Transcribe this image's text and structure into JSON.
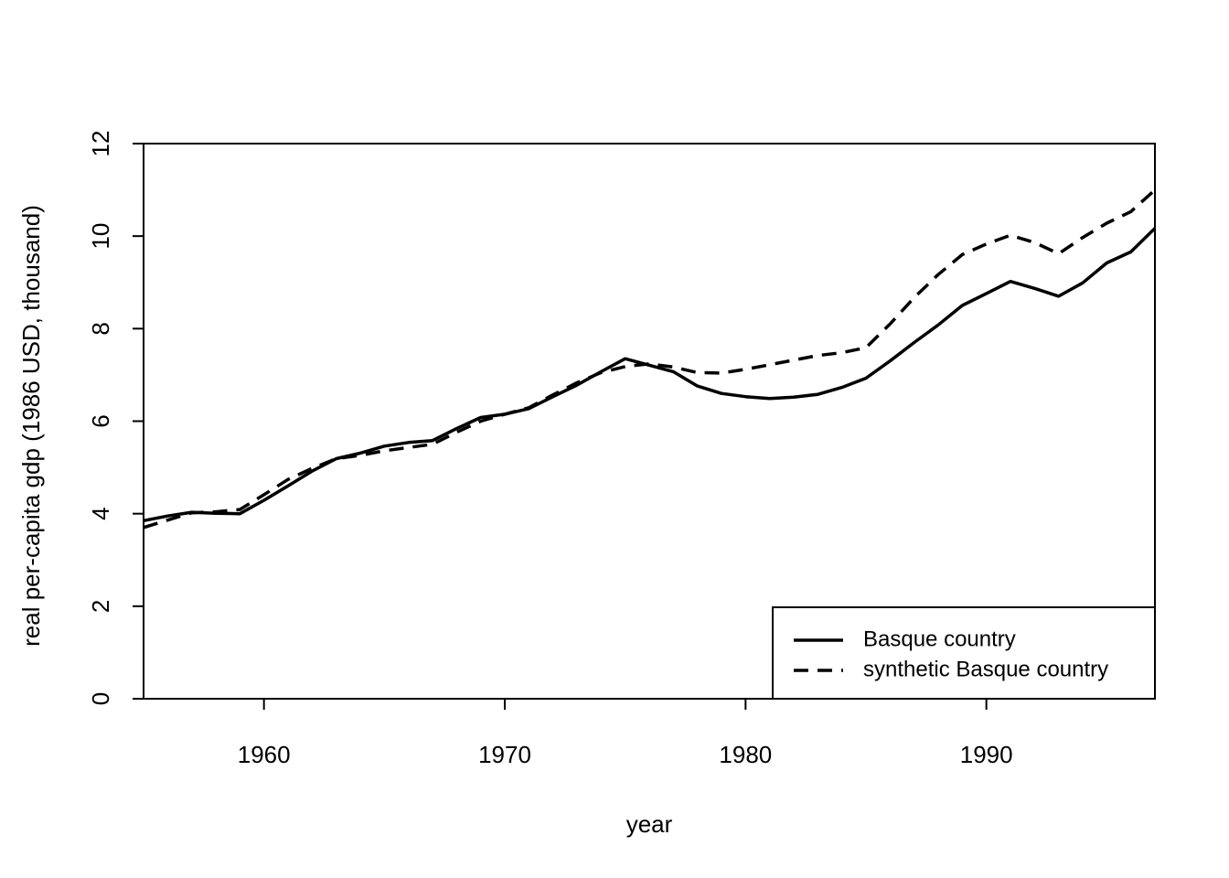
{
  "chart_data": {
    "type": "line",
    "xlabel": "year",
    "ylabel": "real per-capita gdp (1986 USD, thousand)",
    "xlim": [
      1955,
      1997
    ],
    "ylim": [
      0,
      12
    ],
    "x_ticks": [
      1960,
      1970,
      1980,
      1990
    ],
    "y_ticks": [
      0,
      2,
      4,
      6,
      8,
      10,
      12
    ],
    "x_tick_labels": [
      "1960",
      "1970",
      "1980",
      "1990"
    ],
    "y_tick_labels": [
      "0",
      "2",
      "4",
      "6",
      "8",
      "10",
      "12"
    ],
    "legend_position": "bottom-right",
    "series": [
      {
        "name": "Basque country",
        "style": "solid",
        "color": "#000000",
        "x": [
          1955,
          1956,
          1957,
          1958,
          1959,
          1960,
          1961,
          1962,
          1963,
          1964,
          1965,
          1966,
          1967,
          1968,
          1969,
          1970,
          1971,
          1972,
          1973,
          1974,
          1975,
          1976,
          1977,
          1978,
          1979,
          1980,
          1981,
          1982,
          1983,
          1984,
          1985,
          1986,
          1987,
          1988,
          1989,
          1990,
          1991,
          1992,
          1993,
          1994,
          1995,
          1996,
          1997
        ],
        "values": [
          3.85,
          3.95,
          4.03,
          4.01,
          4.0,
          4.29,
          4.6,
          4.92,
          5.19,
          5.31,
          5.46,
          5.54,
          5.58,
          5.84,
          6.08,
          6.15,
          6.27,
          6.53,
          6.78,
          7.07,
          7.35,
          7.21,
          7.07,
          6.76,
          6.6,
          6.53,
          6.49,
          6.52,
          6.58,
          6.73,
          6.93,
          7.3,
          7.7,
          8.08,
          8.5,
          8.76,
          9.02,
          8.87,
          8.7,
          8.99,
          9.42,
          9.66,
          10.17
        ]
      },
      {
        "name": "synthetic Basque country",
        "style": "dashed",
        "color": "#000000",
        "x": [
          1955,
          1956,
          1957,
          1958,
          1959,
          1960,
          1961,
          1962,
          1963,
          1964,
          1965,
          1966,
          1967,
          1968,
          1969,
          1970,
          1971,
          1972,
          1973,
          1974,
          1975,
          1976,
          1977,
          1978,
          1979,
          1980,
          1981,
          1982,
          1983,
          1984,
          1985,
          1986,
          1987,
          1988,
          1989,
          1990,
          1991,
          1992,
          1993,
          1994,
          1995,
          1996,
          1997
        ],
        "values": [
          3.7,
          3.86,
          4.02,
          4.04,
          4.09,
          4.41,
          4.74,
          4.98,
          5.19,
          5.26,
          5.36,
          5.43,
          5.5,
          5.76,
          6.0,
          6.15,
          6.29,
          6.57,
          6.83,
          7.05,
          7.18,
          7.24,
          7.17,
          7.05,
          7.04,
          7.12,
          7.22,
          7.32,
          7.42,
          7.48,
          7.59,
          8.1,
          8.67,
          9.17,
          9.6,
          9.83,
          10.02,
          9.86,
          9.62,
          9.97,
          10.28,
          10.53,
          11.0
        ]
      }
    ]
  }
}
